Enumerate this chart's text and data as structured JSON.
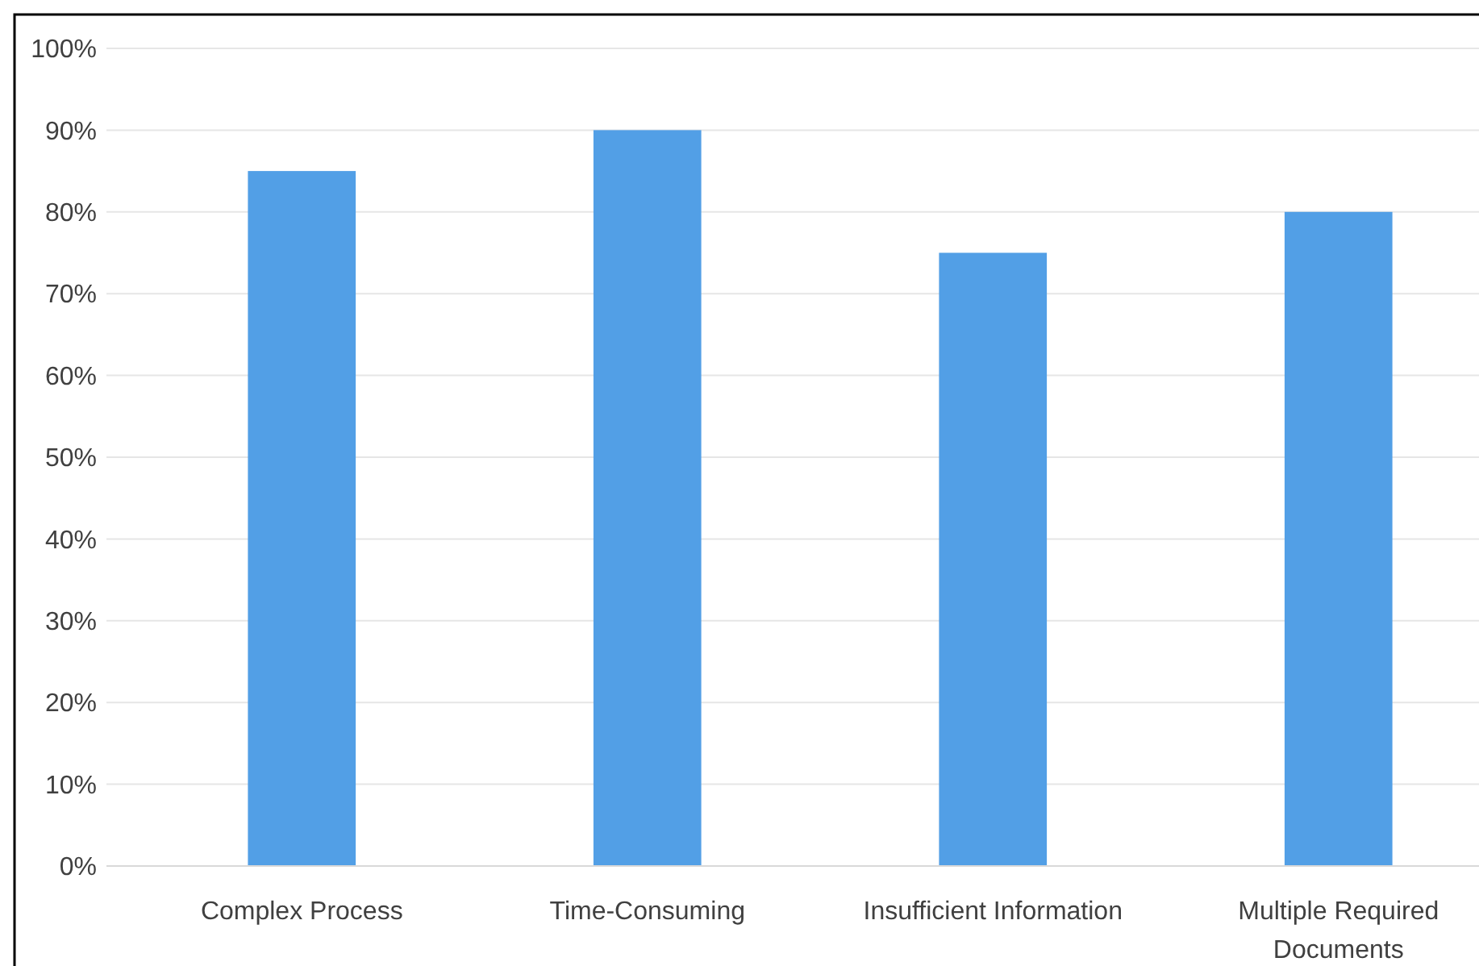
{
  "chart_data": {
    "type": "bar",
    "categories": [
      "Complex Process",
      "Time-Consuming",
      "Insufficient Information",
      "Multiple Required Documents"
    ],
    "values": [
      85,
      90,
      75,
      80
    ],
    "color": "#529fe6",
    "ylim": [
      0,
      100
    ],
    "yticks": [
      {
        "value": 0,
        "label": "0%"
      },
      {
        "value": 10,
        "label": "10%"
      },
      {
        "value": 20,
        "label": "20%"
      },
      {
        "value": 30,
        "label": "30%"
      },
      {
        "value": 40,
        "label": "40%"
      },
      {
        "value": 50,
        "label": "50%"
      },
      {
        "value": 60,
        "label": "60%"
      },
      {
        "value": 70,
        "label": "70%"
      },
      {
        "value": 80,
        "label": "80%"
      },
      {
        "value": 90,
        "label": "90%"
      },
      {
        "value": 100,
        "label": "100%"
      }
    ],
    "grid": "y"
  }
}
